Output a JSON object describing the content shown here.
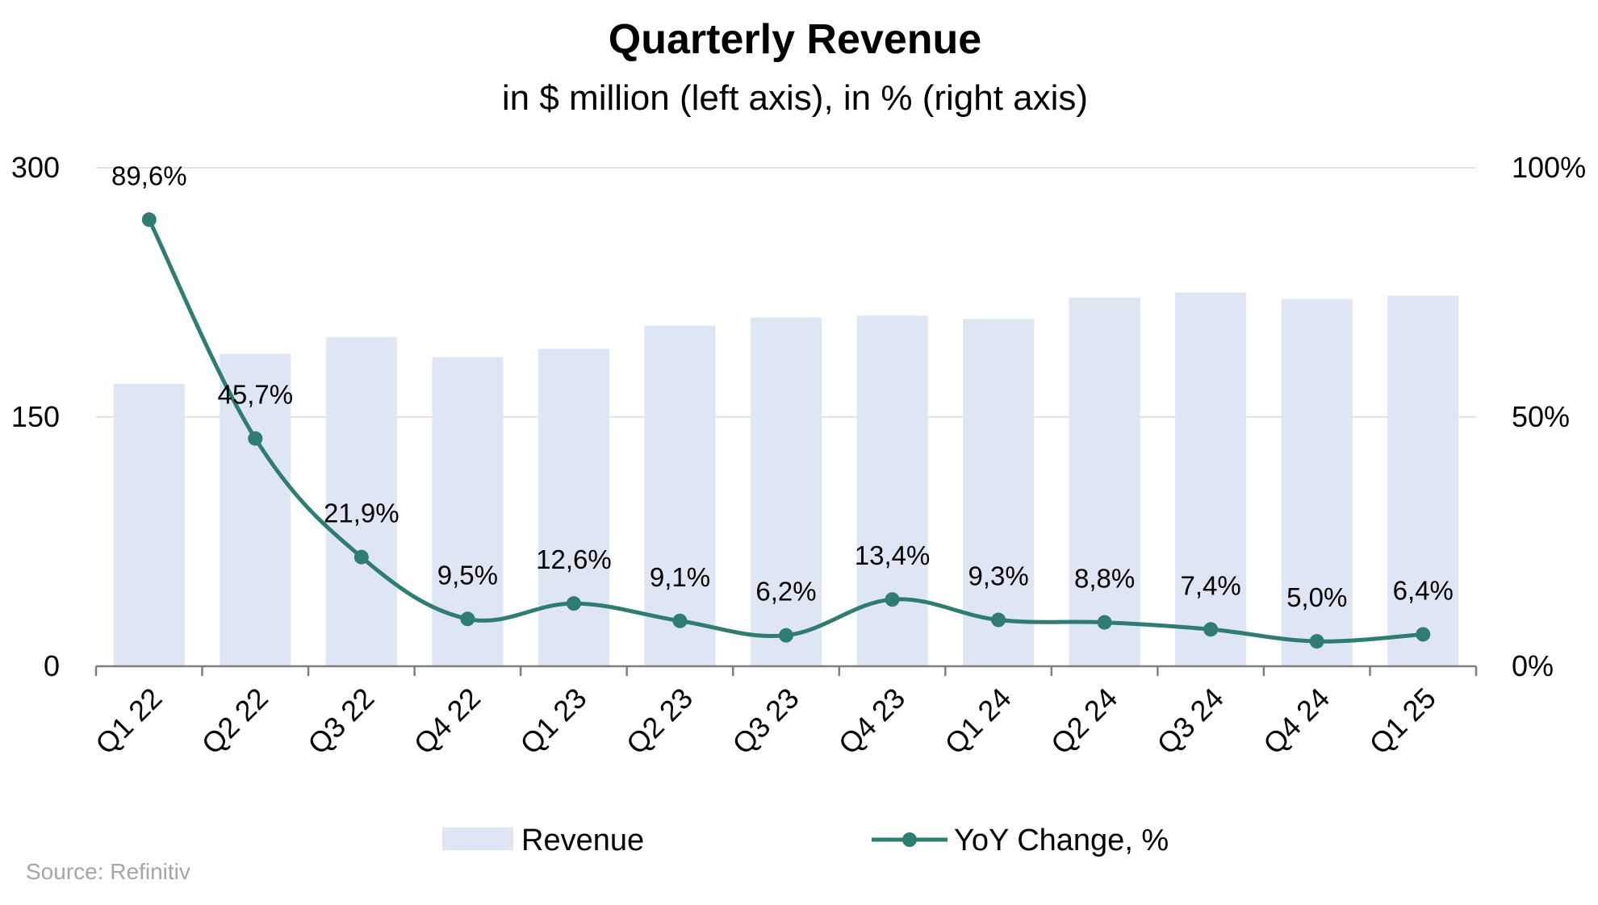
{
  "chart_data": {
    "type": "bar",
    "title": "Quarterly Revenue",
    "subtitle": "in $ million (left axis), in % (right axis)",
    "categories": [
      "Q1 22",
      "Q2 22",
      "Q3 22",
      "Q4 22",
      "Q1 23",
      "Q2 23",
      "Q3 23",
      "Q4 23",
      "Q1 24",
      "Q2 24",
      "Q3 24",
      "Q4 24",
      "Q1 25"
    ],
    "series": [
      {
        "name": "Revenue",
        "type": "bar",
        "axis": "left",
        "color": "#dfe6f3",
        "values": [
          170,
          188,
          198,
          186,
          191,
          205,
          210,
          211,
          209,
          222,
          225,
          221,
          223
        ]
      },
      {
        "name": "YoY Change, %",
        "type": "line",
        "axis": "right",
        "color": "#2e7c72",
        "values": [
          89.6,
          45.7,
          21.9,
          9.5,
          12.6,
          9.1,
          6.2,
          13.4,
          9.3,
          8.8,
          7.4,
          5.0,
          6.4
        ],
        "labels": [
          "89,6%",
          "45,7%",
          "21,9%",
          "9,5%",
          "12,6%",
          "9,1%",
          "6,2%",
          "13,4%",
          "9,3%",
          "8,8%",
          "7,4%",
          "5,0%",
          "6,4%"
        ]
      }
    ],
    "left_axis": {
      "ylim": [
        0,
        300
      ],
      "ticks": [
        0,
        150,
        300
      ],
      "tick_labels": [
        "0",
        "150",
        "300"
      ]
    },
    "right_axis": {
      "ylim": [
        0,
        100
      ],
      "ticks": [
        0,
        50,
        100
      ],
      "tick_labels": [
        "0%",
        "50%",
        "100%"
      ]
    },
    "grid": true,
    "legend": {
      "position": "bottom",
      "entries": [
        "Revenue",
        "YoY Change, %"
      ]
    }
  },
  "source": "Source: Refinitiv"
}
